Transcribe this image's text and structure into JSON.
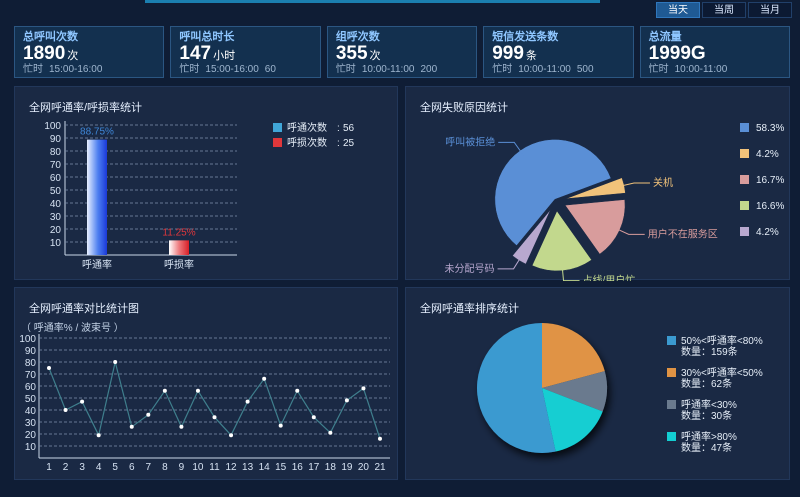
{
  "range_tabs": [
    "当天",
    "当周",
    "当月"
  ],
  "stats": [
    {
      "title": "总呼叫次数",
      "value": "1890",
      "unit": "次",
      "sub_label": "忙时",
      "sub_time": "15:00-16:00",
      "sub_value": ""
    },
    {
      "title": "呼叫总时长",
      "value": "147",
      "unit": "小时",
      "sub_label": "忙时",
      "sub_time": "15:00-16:00",
      "sub_value": "60"
    },
    {
      "title": "组呼次数",
      "value": "355",
      "unit": "次",
      "sub_label": "忙时",
      "sub_time": "10:00-11:00",
      "sub_value": "200"
    },
    {
      "title": "短信发送条数",
      "value": "999",
      "unit": "条",
      "sub_label": "忙时",
      "sub_time": "10:00-11:00",
      "sub_value": "500"
    },
    {
      "title": "总流量",
      "value": "1999G",
      "unit": "",
      "sub_label": "忙时",
      "sub_time": "10:00-11:00",
      "sub_value": ""
    }
  ],
  "panels": {
    "call_rate": {
      "title": "全网呼通率/呼损率统计"
    },
    "failure": {
      "title": "全网失败原因统计"
    },
    "compare": {
      "title": "全网呼通率对比统计图",
      "subtitle": "（ 呼通率% / 波束号 ）"
    },
    "ranking": {
      "title": "全网呼通率排序统计"
    }
  },
  "chart_data": [
    {
      "type": "bar",
      "title": "全网呼通率/呼损率统计",
      "categories": [
        "呼通率",
        "呼损率"
      ],
      "values": [
        88.75,
        11.25
      ],
      "value_labels": [
        "88.75%",
        "11.25%"
      ],
      "colors": [
        "#1f4fe0",
        "#e0262e"
      ],
      "label_colors": [
        "#3e86d6",
        "#e0373b"
      ],
      "ylim": [
        0,
        100
      ],
      "yticks": [
        10,
        20,
        30,
        40,
        50,
        60,
        70,
        80,
        90,
        100
      ],
      "legend": [
        {
          "name": "呼通次数",
          "sep": ":",
          "value": "56",
          "color": "#40a6d8"
        },
        {
          "name": "呼损次数",
          "sep": ":",
          "value": "25",
          "color": "#e0373b"
        }
      ]
    },
    {
      "type": "pie",
      "title": "全网失败原因统计",
      "slices": [
        {
          "label": "呼叫被拒绝",
          "value": 58.3,
          "display": "58.3%",
          "color": "#5a8fd6"
        },
        {
          "label": "关机",
          "value": 4.2,
          "display": "4.2%",
          "color": "#f1c27a"
        },
        {
          "label": "用户不在服务区",
          "value": 16.7,
          "display": "16.7%",
          "color": "#d89c9c"
        },
        {
          "label": "占线/用户忙",
          "value": 16.6,
          "display": "16.6%",
          "color": "#c2d88d"
        },
        {
          "label": "未分配号码",
          "value": 4.2,
          "display": "4.2%",
          "color": "#b8a8cf"
        }
      ]
    },
    {
      "type": "line",
      "title": "全网呼通率对比统计图",
      "ylabel": "呼通率% / 波束号",
      "x": [
        1,
        2,
        3,
        4,
        5,
        6,
        7,
        8,
        9,
        10,
        11,
        12,
        13,
        14,
        15,
        16,
        17,
        18,
        19,
        20,
        21
      ],
      "values": [
        75,
        40,
        47,
        19,
        80,
        26,
        36,
        56,
        26,
        56,
        34,
        19,
        47,
        66,
        27,
        56,
        34,
        21,
        48,
        58,
        16
      ],
      "ylim": [
        0,
        100
      ],
      "yticks": [
        10,
        20,
        30,
        40,
        50,
        60,
        70,
        80,
        90,
        100
      ],
      "color": "#3f7f8d"
    },
    {
      "type": "pie",
      "title": "全网呼通率排序统计",
      "slices": [
        {
          "label": "50%<呼通率<80%",
          "count": "数量：159条",
          "value": 159,
          "color": "#3b9ad0"
        },
        {
          "label": "30%<呼通率<50%",
          "count": "数量：62条",
          "value": 62,
          "color": "#e09344"
        },
        {
          "label": "呼通率<30%",
          "count": "数量：30条",
          "value": 30,
          "color": "#6a7a8e"
        },
        {
          "label": "呼通率>80%",
          "count": "数量：47条",
          "value": 47,
          "color": "#13ced2"
        }
      ]
    }
  ]
}
